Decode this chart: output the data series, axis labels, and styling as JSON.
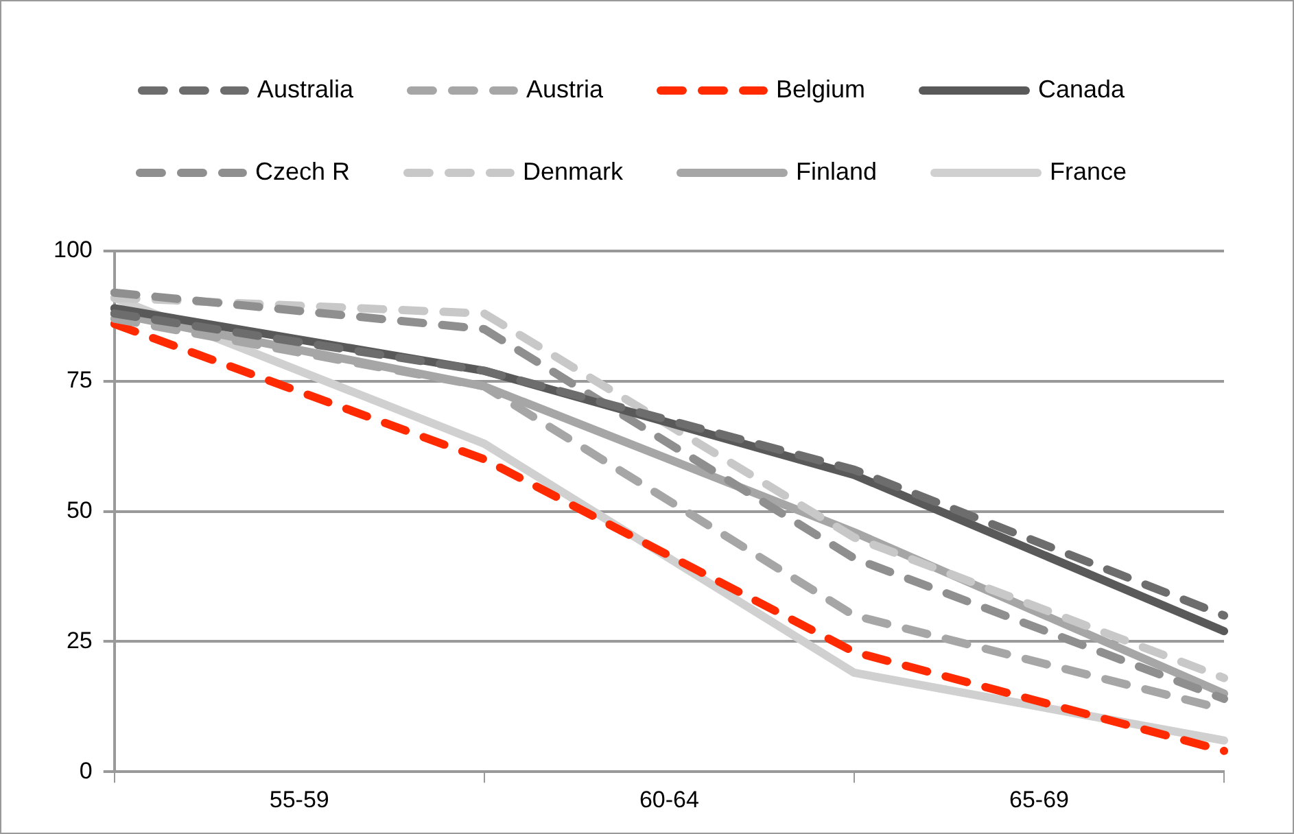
{
  "chart_data": {
    "type": "line",
    "categories": [
      null,
      "55-59",
      null,
      "60-64",
      null,
      "65-69",
      null
    ],
    "ylim": [
      0,
      100
    ],
    "yticks": [
      0,
      25,
      50,
      75,
      100
    ],
    "grid": "y",
    "legend": "top",
    "marker": "none",
    "series": [
      {
        "name": "Australia",
        "color": "#6d6d6d",
        "line_style": "dashed",
        "values": [
          88,
          null,
          77,
          null,
          58,
          null,
          30
        ]
      },
      {
        "name": "Austria",
        "color": "#a6a6a6",
        "line_style": "dashed",
        "values": [
          87,
          null,
          74,
          null,
          30,
          null,
          12
        ]
      },
      {
        "name": "Belgium",
        "color": "#ff2a00",
        "line_style": "dashed",
        "values": [
          86,
          null,
          60,
          null,
          23,
          null,
          4
        ]
      },
      {
        "name": "Canada",
        "color": "#595959",
        "line_style": "solid",
        "values": [
          89,
          null,
          77,
          null,
          57,
          null,
          27
        ]
      },
      {
        "name": "Czech R",
        "color": "#8f8f8f",
        "line_style": "dashed",
        "values": [
          92,
          null,
          85,
          null,
          41,
          null,
          14
        ]
      },
      {
        "name": "Denmark",
        "color": "#c8c8c8",
        "line_style": "dashed",
        "values": [
          91,
          null,
          88,
          null,
          45,
          null,
          18
        ]
      },
      {
        "name": "Finland",
        "color": "#a6a6a6",
        "line_style": "solid",
        "values": [
          88,
          null,
          74,
          null,
          46,
          null,
          15
        ]
      },
      {
        "name": "France",
        "color": "#d0d0d0",
        "line_style": "solid",
        "values": [
          91,
          null,
          63,
          null,
          19,
          null,
          6
        ]
      }
    ]
  }
}
